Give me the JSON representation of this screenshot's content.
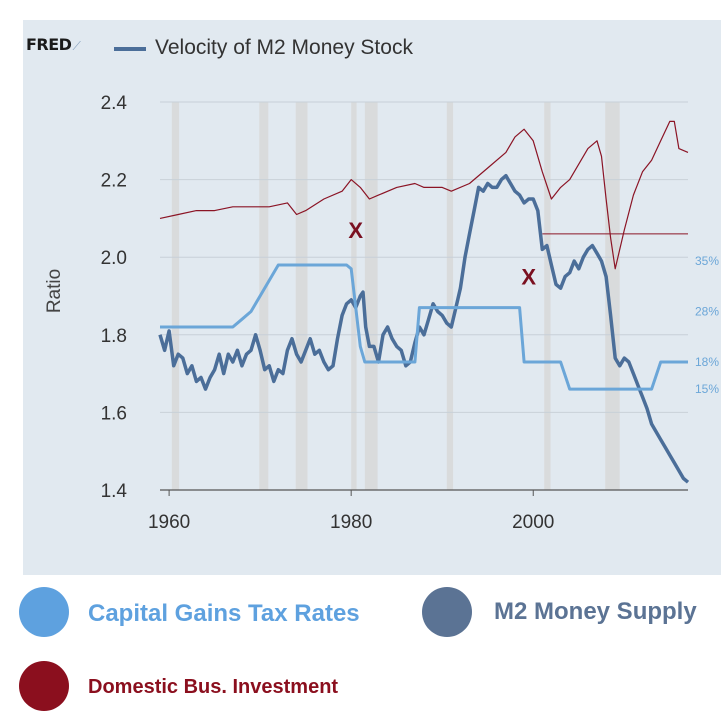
{
  "brand": {
    "logo_text": "FRED"
  },
  "chart_data": {
    "type": "line",
    "title": "Velocity of M2 Money Stock",
    "ylabel": "Ratio",
    "xlim": [
      1959,
      2017
    ],
    "ylim": [
      1.4,
      2.4
    ],
    "x_ticks": [
      1960,
      1980,
      2000
    ],
    "x_tick_labels": [
      "1960",
      "1980",
      "2000"
    ],
    "y_ticks": [
      1.4,
      1.6,
      1.8,
      2.0,
      2.2,
      2.4
    ],
    "y_tick_labels": [
      "1.4",
      "1.6",
      "1.8",
      "2.0",
      "2.2",
      "2.4"
    ],
    "grid": true,
    "recessions": [
      [
        1960.3,
        1961.1
      ],
      [
        1969.9,
        1970.9
      ],
      [
        1973.9,
        1975.2
      ],
      [
        1980.0,
        1980.6
      ],
      [
        1981.5,
        1982.9
      ],
      [
        1990.5,
        1991.2
      ],
      [
        2001.2,
        2001.9
      ],
      [
        2007.9,
        2009.5
      ]
    ],
    "series": [
      {
        "name": "M2 Money Supply",
        "color": "#4b6e99",
        "x": [
          1959,
          1959.5,
          1960,
          1960.5,
          1961,
          1961.5,
          1962,
          1962.5,
          1963,
          1963.5,
          1964,
          1964.5,
          1965,
          1965.5,
          1966,
          1966.5,
          1967,
          1967.5,
          1968,
          1968.5,
          1969,
          1969.5,
          1970,
          1970.5,
          1971,
          1971.5,
          1972,
          1972.5,
          1973,
          1973.5,
          1974,
          1974.5,
          1975,
          1975.5,
          1976,
          1976.5,
          1977,
          1977.5,
          1978,
          1978.5,
          1979,
          1979.5,
          1980,
          1980.5,
          1981,
          1981.3,
          1981.6,
          1982,
          1982.5,
          1983,
          1983.5,
          1984,
          1984.5,
          1985,
          1985.5,
          1986,
          1986.5,
          1987,
          1987.5,
          1988,
          1988.5,
          1989,
          1989.5,
          1990,
          1990.5,
          1991,
          1991.5,
          1992,
          1992.5,
          1993,
          1993.5,
          1994,
          1994.5,
          1995,
          1995.5,
          1996,
          1996.5,
          1997,
          1997.5,
          1998,
          1998.5,
          1999,
          1999.5,
          2000,
          2000.5,
          2001,
          2001.5,
          2002,
          2002.5,
          2003,
          2003.5,
          2004,
          2004.5,
          2005,
          2005.5,
          2006,
          2006.5,
          2007,
          2007.5,
          2008,
          2008.5,
          2009,
          2009.5,
          2010,
          2010.5,
          2011,
          2011.5,
          2012,
          2012.5,
          2013,
          2013.5,
          2014,
          2014.5,
          2015,
          2015.5,
          2016,
          2016.5,
          2017
        ],
        "y": [
          1.8,
          1.76,
          1.81,
          1.72,
          1.75,
          1.74,
          1.7,
          1.72,
          1.68,
          1.69,
          1.66,
          1.69,
          1.71,
          1.75,
          1.7,
          1.75,
          1.73,
          1.76,
          1.72,
          1.75,
          1.76,
          1.8,
          1.76,
          1.71,
          1.72,
          1.68,
          1.71,
          1.7,
          1.76,
          1.79,
          1.75,
          1.73,
          1.76,
          1.79,
          1.75,
          1.76,
          1.73,
          1.71,
          1.72,
          1.79,
          1.85,
          1.88,
          1.89,
          1.87,
          1.9,
          1.91,
          1.82,
          1.77,
          1.77,
          1.73,
          1.8,
          1.82,
          1.79,
          1.77,
          1.76,
          1.72,
          1.73,
          1.78,
          1.82,
          1.8,
          1.84,
          1.88,
          1.86,
          1.85,
          1.83,
          1.82,
          1.87,
          1.92,
          2.0,
          2.06,
          2.12,
          2.18,
          2.17,
          2.19,
          2.18,
          2.18,
          2.2,
          2.21,
          2.19,
          2.17,
          2.16,
          2.14,
          2.15,
          2.15,
          2.12,
          2.02,
          2.03,
          1.98,
          1.93,
          1.92,
          1.95,
          1.96,
          1.99,
          1.97,
          2.0,
          2.02,
          2.03,
          2.01,
          1.99,
          1.95,
          1.85,
          1.74,
          1.72,
          1.74,
          1.73,
          1.7,
          1.67,
          1.64,
          1.61,
          1.57,
          1.55,
          1.53,
          1.51,
          1.49,
          1.47,
          1.45,
          1.43,
          1.42
        ]
      },
      {
        "name": "Capital Gains Tax Rates",
        "color": "#6ba6d8",
        "x": [
          1959,
          1960,
          1967,
          1968,
          1969,
          1970,
          1971,
          1972,
          1978.5,
          1979.5,
          1980,
          1981,
          1981.5,
          1987,
          1987.5,
          1998.5,
          1999,
          2003,
          2004,
          2013,
          2014,
          2017
        ],
        "y": [
          1.82,
          1.82,
          1.82,
          1.84,
          1.86,
          1.9,
          1.94,
          1.98,
          1.98,
          1.98,
          1.97,
          1.77,
          1.73,
          1.73,
          1.87,
          1.87,
          1.73,
          1.73,
          1.66,
          1.66,
          1.73,
          1.73
        ]
      },
      {
        "name": "Domestic Bus. Investment",
        "color": "#8b1425",
        "x": [
          1959,
          1961,
          1963,
          1965,
          1967,
          1969,
          1971,
          1973,
          1974,
          1975,
          1977,
          1979,
          1980,
          1981,
          1982,
          1983,
          1985,
          1987,
          1988,
          1990,
          1991,
          1993,
          1995,
          1997,
          1998,
          1999,
          2000,
          2001,
          2002,
          2003,
          2004,
          2005,
          2006,
          2007,
          2007.5,
          2008,
          2008.5,
          2009,
          2010,
          2011,
          2012,
          2013,
          2014,
          2015,
          2015.5,
          2016,
          2017
        ],
        "y": [
          2.1,
          2.11,
          2.12,
          2.12,
          2.13,
          2.13,
          2.13,
          2.14,
          2.11,
          2.12,
          2.15,
          2.17,
          2.2,
          2.18,
          2.15,
          2.16,
          2.18,
          2.19,
          2.18,
          2.18,
          2.17,
          2.19,
          2.23,
          2.27,
          2.31,
          2.33,
          2.3,
          2.22,
          2.15,
          2.18,
          2.2,
          2.24,
          2.28,
          2.3,
          2.26,
          2.15,
          2.05,
          1.97,
          2.07,
          2.16,
          2.22,
          2.25,
          2.3,
          2.35,
          2.35,
          2.28,
          2.27
        ]
      }
    ],
    "reference_levels": [
      {
        "y": 2.06,
        "from_x": 2001,
        "color": "#8b1425"
      }
    ],
    "annotations": [
      {
        "text": "X",
        "x": 1980.5,
        "y": 2.05,
        "color": "#7a1020"
      },
      {
        "text": "X",
        "x": 1999.5,
        "y": 1.93,
        "color": "#7a1020"
      }
    ],
    "tax_rate_labels": [
      {
        "text": "35%",
        "y": 1.99
      },
      {
        "text": "28%",
        "y": 1.86
      },
      {
        "text": "18%",
        "y": 1.73
      },
      {
        "text": "15%",
        "y": 1.66
      }
    ]
  },
  "legend": {
    "items": [
      {
        "label": "Capital Gains Tax Rates",
        "color": "#5ea1df"
      },
      {
        "label": "M2 Money Supply",
        "color": "#5b7394"
      },
      {
        "label": "Domestic Bus. Investment",
        "color": "#8b0f1e"
      }
    ]
  }
}
